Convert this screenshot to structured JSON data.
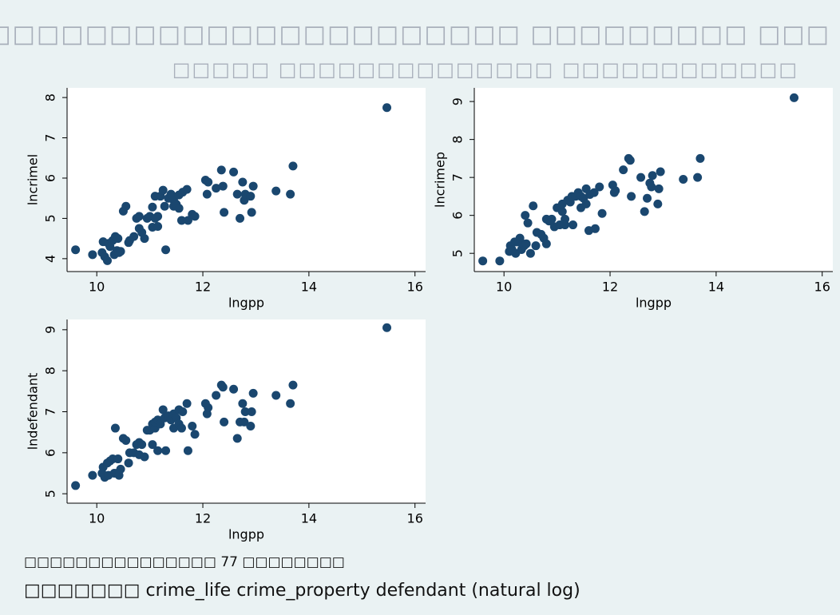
{
  "title": "□□□□□□□□□□□□□□□□□□□□□□□ □□□□□□□□□ □□□",
  "subtitle": "□□□□□ □□□□□□□□□□□□□□ □□□□□□□□□□□□",
  "notes": [
    "□□□□□□□□□□□□□□□ 77 □□□□□□□□",
    "□□□□□□□ crime_life crime_property defendant (natural log)"
  ],
  "chart_data": [
    {
      "type": "scatter",
      "x_label": "lngpp",
      "y_label": "lncrimel",
      "color": "#1a476f",
      "xlim": [
        9.44,
        16.2
      ],
      "ylim": [
        3.68,
        8.24
      ],
      "xticks": [
        10,
        12,
        14,
        16
      ],
      "yticks": [
        4,
        5,
        6,
        7,
        8
      ],
      "x": [
        9.6,
        9.92,
        10.1,
        10.12,
        10.15,
        10.2,
        10.22,
        10.25,
        10.3,
        10.33,
        10.35,
        10.38,
        10.4,
        10.42,
        10.45,
        10.5,
        10.55,
        10.6,
        10.62,
        10.7,
        10.75,
        10.8,
        10.8,
        10.85,
        10.9,
        10.95,
        11.0,
        11.05,
        11.05,
        11.1,
        11.1,
        11.15,
        11.15,
        11.2,
        11.25,
        11.28,
        11.3,
        11.35,
        11.4,
        11.45,
        11.45,
        11.5,
        11.55,
        11.55,
        11.6,
        11.62,
        11.7,
        11.72,
        11.8,
        11.85,
        12.05,
        12.08,
        12.1,
        12.25,
        12.35,
        12.38,
        12.4,
        12.58,
        12.65,
        12.7,
        12.75,
        12.78,
        12.8,
        12.9,
        12.92,
        12.95,
        13.38,
        13.65,
        13.7,
        15.47
      ],
      "values": [
        4.22,
        4.1,
        4.15,
        4.42,
        4.05,
        3.95,
        4.38,
        4.3,
        4.45,
        4.1,
        4.55,
        4.2,
        4.5,
        4.15,
        4.18,
        5.18,
        5.3,
        4.4,
        4.45,
        4.55,
        5.0,
        5.05,
        4.75,
        4.65,
        4.5,
        5.0,
        5.05,
        4.78,
        5.28,
        5.0,
        5.55,
        5.05,
        4.8,
        5.55,
        5.7,
        5.3,
        4.22,
        5.5,
        5.6,
        5.3,
        5.45,
        5.35,
        5.58,
        5.25,
        4.95,
        5.65,
        5.72,
        4.95,
        5.1,
        5.05,
        5.95,
        5.6,
        5.9,
        5.75,
        6.2,
        5.8,
        5.15,
        6.15,
        5.6,
        5.0,
        5.9,
        5.45,
        5.6,
        5.55,
        5.15,
        5.8,
        5.68,
        5.6,
        6.3,
        7.75
      ]
    },
    {
      "type": "scatter",
      "x_label": "lngpp",
      "y_label": "lncrimep",
      "color": "#1a476f",
      "xlim": [
        9.44,
        16.2
      ],
      "ylim": [
        4.52,
        9.36
      ],
      "xticks": [
        10,
        12,
        14,
        16
      ],
      "yticks": [
        5,
        6,
        7,
        8,
        9
      ],
      "x": [
        9.6,
        9.92,
        10.1,
        10.12,
        10.15,
        10.2,
        10.22,
        10.25,
        10.3,
        10.33,
        10.35,
        10.38,
        10.4,
        10.42,
        10.45,
        10.5,
        10.55,
        10.6,
        10.62,
        10.7,
        10.75,
        10.8,
        10.8,
        10.85,
        10.9,
        10.95,
        11.0,
        11.05,
        11.05,
        11.1,
        11.1,
        11.15,
        11.15,
        11.2,
        11.25,
        11.28,
        11.3,
        11.35,
        11.4,
        11.45,
        11.45,
        11.5,
        11.55,
        11.55,
        11.6,
        11.62,
        11.7,
        11.72,
        11.8,
        11.85,
        12.05,
        12.08,
        12.1,
        12.25,
        12.35,
        12.38,
        12.4,
        12.58,
        12.65,
        12.7,
        12.75,
        12.78,
        12.8,
        12.9,
        12.92,
        12.95,
        13.38,
        13.65,
        13.7,
        15.47
      ],
      "values": [
        4.8,
        4.8,
        5.05,
        5.2,
        5.1,
        5.3,
        5.0,
        5.3,
        5.4,
        5.1,
        5.25,
        5.2,
        6.0,
        5.25,
        5.8,
        5.0,
        6.25,
        5.2,
        5.55,
        5.5,
        5.4,
        5.9,
        5.25,
        5.85,
        5.9,
        5.7,
        6.2,
        5.75,
        6.2,
        6.1,
        6.3,
        5.9,
        5.75,
        6.4,
        6.35,
        6.5,
        5.75,
        6.5,
        6.6,
        6.2,
        6.5,
        6.45,
        6.7,
        6.3,
        5.6,
        6.55,
        6.6,
        5.65,
        6.75,
        6.05,
        6.8,
        6.6,
        6.65,
        7.2,
        7.5,
        7.45,
        6.5,
        7.0,
        6.1,
        6.45,
        6.85,
        6.75,
        7.05,
        6.3,
        6.7,
        7.15,
        6.95,
        7.0,
        7.5,
        9.1
      ]
    },
    {
      "type": "scatter",
      "x_label": "lngpp",
      "y_label": "lndefendant",
      "color": "#1a476f",
      "xlim": [
        9.44,
        16.2
      ],
      "ylim": [
        4.77,
        9.25
      ],
      "xticks": [
        10,
        12,
        14,
        16
      ],
      "yticks": [
        5,
        6,
        7,
        8,
        9
      ],
      "x": [
        9.6,
        9.92,
        10.1,
        10.12,
        10.15,
        10.2,
        10.22,
        10.25,
        10.3,
        10.33,
        10.35,
        10.38,
        10.4,
        10.42,
        10.45,
        10.5,
        10.55,
        10.6,
        10.62,
        10.7,
        10.75,
        10.8,
        10.8,
        10.85,
        10.9,
        10.95,
        11.0,
        11.05,
        11.05,
        11.1,
        11.1,
        11.15,
        11.15,
        11.2,
        11.25,
        11.28,
        11.3,
        11.35,
        11.4,
        11.45,
        11.45,
        11.5,
        11.55,
        11.55,
        11.6,
        11.62,
        11.7,
        11.72,
        11.8,
        11.85,
        12.05,
        12.08,
        12.1,
        12.25,
        12.35,
        12.38,
        12.4,
        12.58,
        12.65,
        12.7,
        12.75,
        12.78,
        12.8,
        12.9,
        12.92,
        12.95,
        13.38,
        13.65,
        13.7,
        15.47
      ],
      "values": [
        5.2,
        5.45,
        5.5,
        5.65,
        5.4,
        5.75,
        5.45,
        5.8,
        5.85,
        5.5,
        6.6,
        5.5,
        5.85,
        5.45,
        5.6,
        6.35,
        6.3,
        5.75,
        6.0,
        6.0,
        6.2,
        5.95,
        6.25,
        6.2,
        5.9,
        6.55,
        6.55,
        6.2,
        6.7,
        6.6,
        6.75,
        6.8,
        6.05,
        6.7,
        7.05,
        6.85,
        6.05,
        6.9,
        6.8,
        6.6,
        6.95,
        6.85,
        7.05,
        6.7,
        6.6,
        7.0,
        7.2,
        6.05,
        6.65,
        6.45,
        7.2,
        6.95,
        7.1,
        7.4,
        7.65,
        7.6,
        6.75,
        7.55,
        6.35,
        6.75,
        7.2,
        6.75,
        7.0,
        6.65,
        7.0,
        7.45,
        7.4,
        7.2,
        7.65,
        9.05
      ]
    }
  ]
}
